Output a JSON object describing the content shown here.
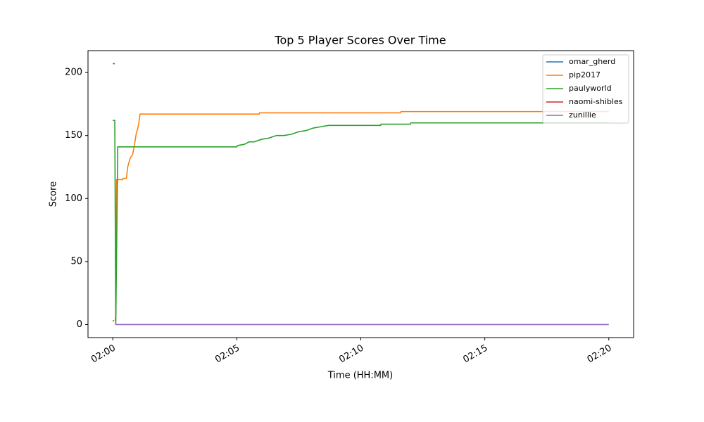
{
  "chart_data": {
    "type": "line",
    "title": "Top 5 Player Scores Over Time",
    "x_label": "Time (HH:MM)",
    "y_label": "Score",
    "xlim": [
      -1,
      21
    ],
    "ylim": [
      -10.35,
      217.35
    ],
    "xticks": [
      {
        "value": 0,
        "label": "02:00"
      },
      {
        "value": 5,
        "label": "02:05"
      },
      {
        "value": 10,
        "label": "02:10"
      },
      {
        "value": 15,
        "label": "02:15"
      },
      {
        "value": 20,
        "label": "02:20"
      }
    ],
    "yticks": [
      0,
      50,
      100,
      150,
      200
    ],
    "grid": false,
    "legend": "upper right",
    "series": [
      {
        "name": "omar_gherd",
        "color": "#1f77b4",
        "x": [
          0,
          0.08
        ],
        "values": [
          207,
          207
        ]
      },
      {
        "name": "pip2017",
        "color": "#ff7f0e",
        "x": [
          0.1,
          0.12,
          0.15,
          0.4,
          0.42,
          0.55,
          0.6,
          0.7,
          0.8,
          0.85,
          0.9,
          0.95,
          1.0,
          1.05,
          1.1,
          5.9,
          5.92,
          11.6,
          11.62,
          20
        ],
        "values": [
          3,
          8,
          115,
          115,
          116,
          116,
          125,
          132,
          135,
          140,
          146,
          152,
          155,
          160,
          167,
          167,
          168,
          168,
          169,
          169
        ]
      },
      {
        "name": "paulyworld",
        "color": "#2ca02c",
        "x": [
          0,
          0.08,
          0.12,
          0.2,
          5.0,
          5.02,
          5.3,
          5.5,
          5.7,
          6.0,
          6.3,
          6.6,
          6.9,
          7.2,
          7.5,
          7.8,
          8.1,
          8.4,
          8.7,
          10.8,
          10.82,
          12.0,
          12.02,
          20
        ],
        "values": [
          162,
          162,
          0,
          141,
          141,
          142,
          143,
          145,
          145,
          147,
          148,
          150,
          150,
          151,
          153,
          154,
          156,
          157,
          158,
          158,
          159,
          159,
          160,
          160
        ]
      },
      {
        "name": "naomi-shibles",
        "color": "#d62728",
        "x": [
          0,
          0.05
        ],
        "values": [
          3,
          3
        ]
      },
      {
        "name": "zunillie",
        "color": "#9467bd",
        "x": [
          0.1,
          20
        ],
        "values": [
          0,
          0
        ]
      }
    ]
  }
}
